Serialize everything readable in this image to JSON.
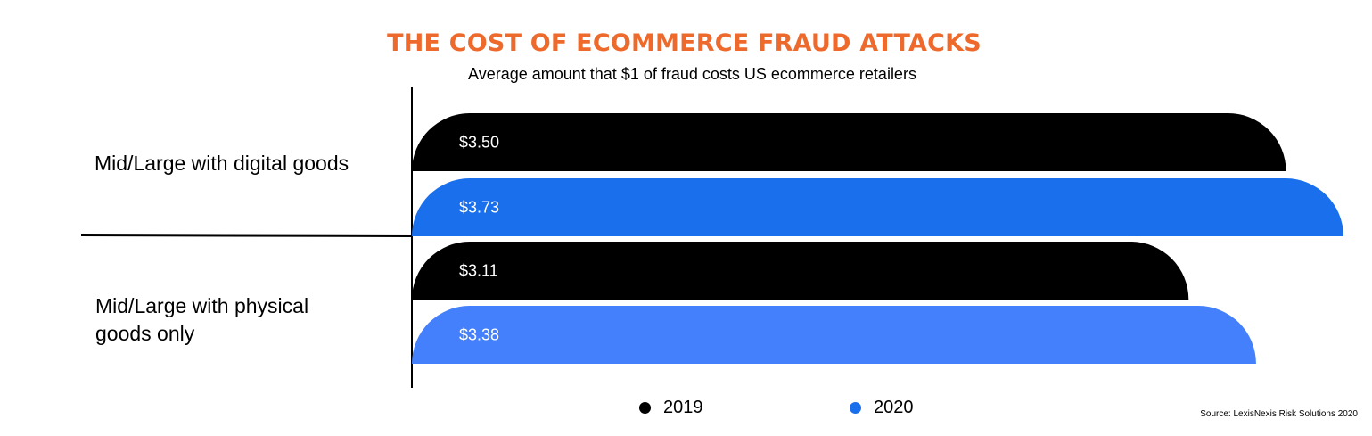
{
  "chart_data": {
    "type": "bar",
    "orientation": "horizontal",
    "title": "THE COST OF ECOMMERCE FRAUD ATTACKS",
    "subtitle": "Average amount that $1 of fraud costs US ecommerce retailers",
    "categories": [
      "Mid/Large with digital goods",
      "Mid/Large with physical goods only"
    ],
    "series": [
      {
        "name": "2019",
        "color": "#000000",
        "values": [
          3.5,
          3.11
        ],
        "labels": [
          "$3.50",
          "$3.11"
        ]
      },
      {
        "name": "2020",
        "colors": [
          "#1a6fec",
          "#4480fb"
        ],
        "values": [
          3.73,
          3.38
        ],
        "labels": [
          "$3.73",
          "$3.38"
        ]
      }
    ],
    "legend_position": "bottom",
    "grid": false,
    "xlim": [
      0,
      3.73
    ],
    "source": "Source: LexisNexis Risk Solutions 2020"
  }
}
